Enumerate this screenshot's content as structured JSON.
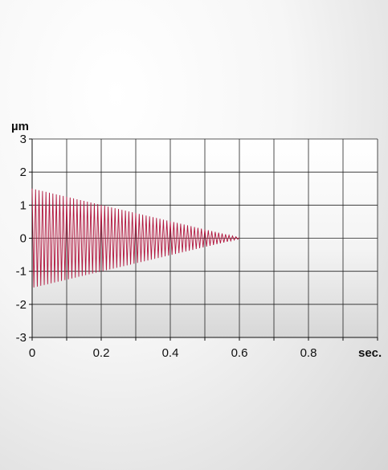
{
  "chart_data": {
    "type": "line",
    "title": "",
    "xlabel": "sec.",
    "ylabel": "µm",
    "xlim": [
      0,
      1
    ],
    "ylim": [
      -3,
      3
    ],
    "x_ticks": [
      "0",
      "0.2",
      "0.4",
      "0.6",
      "0.8"
    ],
    "y_ticks": [
      "3",
      "2",
      "1",
      "0",
      "-1",
      "-2",
      "-3"
    ],
    "grid": true,
    "legend": "none",
    "series": [
      {
        "kind": "damped oscillation",
        "color": "#b0143c",
        "initial_amplitude": 1.5,
        "final_amplitude": 0.02,
        "decay_end_x": 0.6,
        "cycles": 60,
        "points": [
          [
            0.0,
            1.5
          ],
          [
            0.1,
            1.25
          ],
          [
            0.2,
            1.0
          ],
          [
            0.3,
            0.75
          ],
          [
            0.4,
            0.5
          ],
          [
            0.5,
            0.25
          ],
          [
            0.6,
            0.02
          ]
        ]
      }
    ]
  }
}
